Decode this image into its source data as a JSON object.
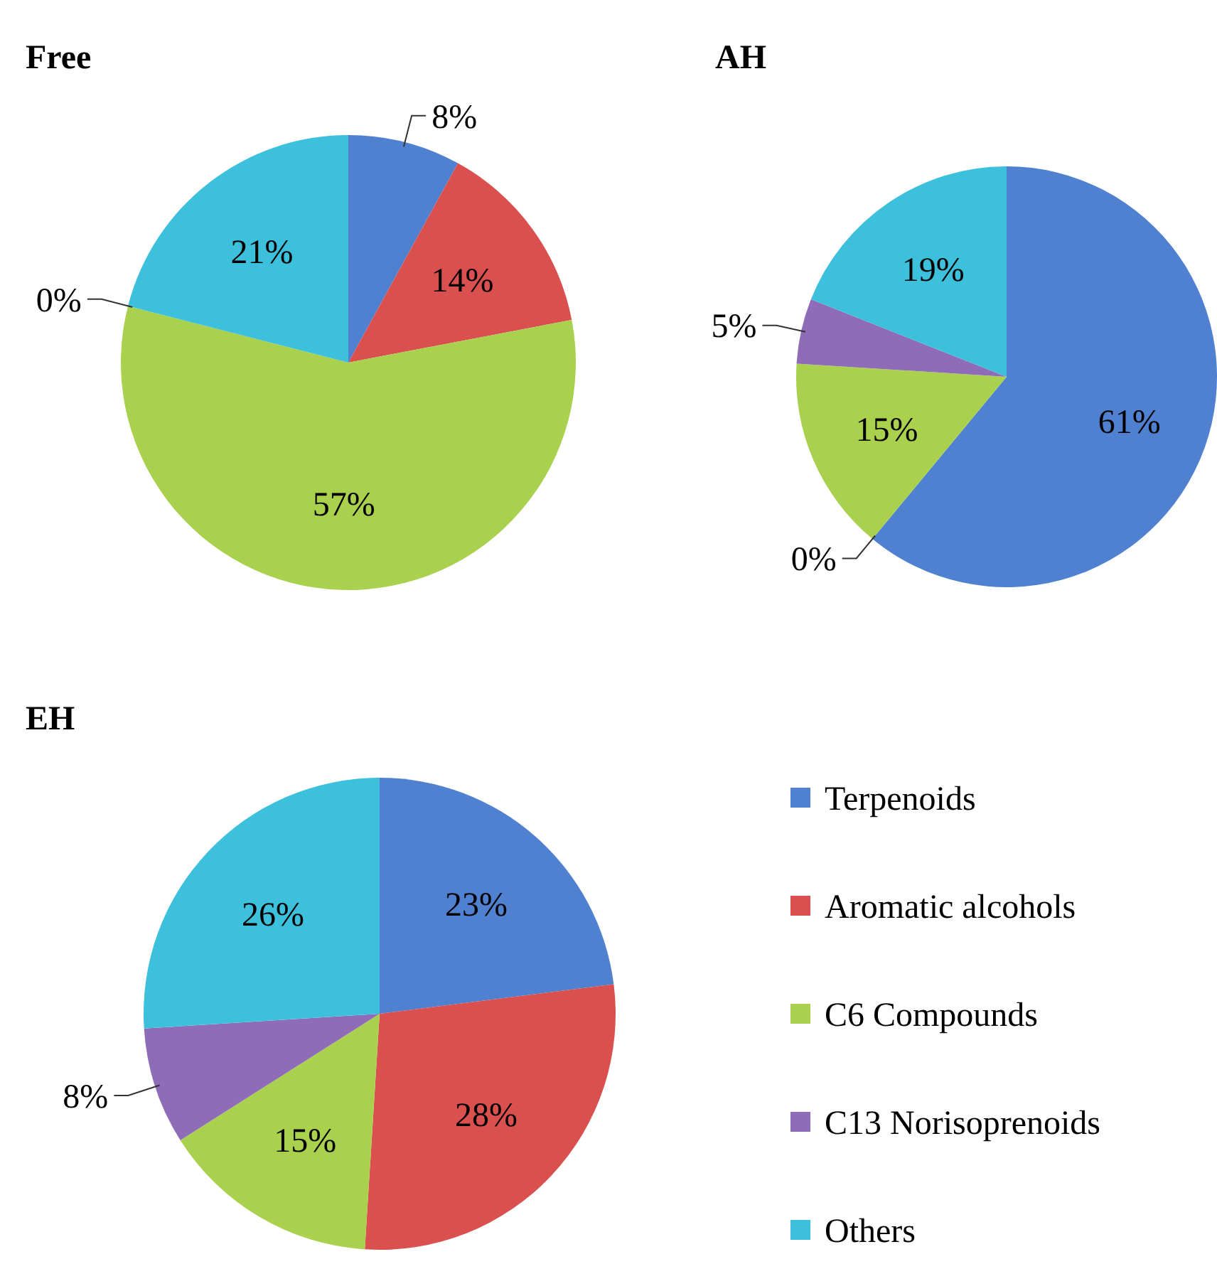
{
  "chart_data": [
    {
      "type": "pie",
      "title": "Free",
      "categories": [
        null,
        null,
        null,
        null,
        null
      ],
      "values": [
        8,
        14,
        57,
        0,
        21
      ],
      "colors": [
        "#4f81d0",
        "#d9504f",
        "#a9d14e",
        "#8e6cb8",
        "#3cc0db"
      ],
      "value_labels": [
        "8%",
        "14%",
        "57%",
        "0%",
        "21%"
      ]
    },
    {
      "type": "pie",
      "title": "AH",
      "categories": [
        null,
        null,
        null,
        null,
        null
      ],
      "values": [
        61,
        0,
        15,
        5,
        19
      ],
      "colors": [
        "#4f81d0",
        "#d9504f",
        "#a9d14e",
        "#8e6cb8",
        "#3cc0db"
      ],
      "value_labels": [
        "61%",
        "0%",
        "15%",
        "5%",
        "19%"
      ]
    },
    {
      "type": "pie",
      "title": "EH",
      "categories": [
        "Terpenoids",
        "Aromatic alcohols",
        "C6 Compounds",
        "C13 Norisoprenoids",
        "Others"
      ],
      "values": [
        23,
        28,
        15,
        8,
        26
      ],
      "colors": [
        "#4f81d0",
        "#d9504f",
        "#a9d14e",
        "#8e6cb8",
        "#3cc0db"
      ],
      "value_labels": [
        "23%",
        "28%",
        "15%",
        "8%",
        "26%"
      ],
      "legend": "right"
    }
  ]
}
